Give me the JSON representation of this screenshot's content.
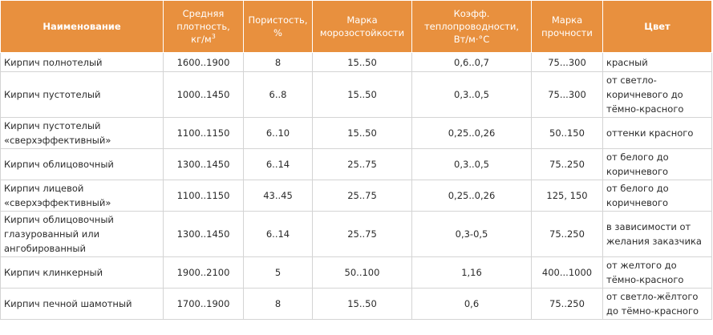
{
  "header": {
    "name": "Наименование",
    "density_line1": "Средняя",
    "density_line2": "плотность,",
    "density_unit": "кг/м",
    "density_sup": "3",
    "porosity": "Пористость,",
    "porosity_unit": "%",
    "frost_line1": "Марка",
    "frost_line2": "морозостойкости",
    "thermal_line1": "Коэфф.",
    "thermal_line2": "теплопроводности,",
    "thermal_line3": "Вт/м·°С",
    "strength_line1": "Марка",
    "strength_line2": "прочности",
    "color": "Цвет"
  },
  "rows": [
    {
      "name": [
        "Кирпич полнотелый"
      ],
      "density": "1600..1900",
      "porosity": "8",
      "frost": "15..50",
      "thermal": "0,6..0,7",
      "strength": "75...300",
      "color": [
        "красный"
      ]
    },
    {
      "name": [
        "Кирпич пустотелый"
      ],
      "density": "1000..1450",
      "porosity": "6..8",
      "frost": "15..50",
      "thermal": "0,3..0,5",
      "strength": "75...300",
      "color": [
        "от светло-",
        "коричневого до",
        "тёмно-красного"
      ]
    },
    {
      "name": [
        "Кирпич пустотелый",
        "«сверхэффективный»"
      ],
      "density": "1100..1150",
      "porosity": "6..10",
      "frost": "15..50",
      "thermal": "0,25..0,26",
      "strength": "50..150",
      "color": [
        "оттенки красного"
      ]
    },
    {
      "name": [
        "Кирпич облицовочный"
      ],
      "density": "1300..1450",
      "porosity": "6..14",
      "frost": "25..75",
      "thermal": "0,3..0,5",
      "strength": "75..250",
      "color": [
        "от белого до",
        "коричневого"
      ]
    },
    {
      "name": [
        "Кирпич лицевой",
        "«сверхэффективный»"
      ],
      "density": "1100..1150",
      "porosity": "43..45",
      "frost": "25..75",
      "thermal": "0,25..0,26",
      "strength": "125, 150",
      "color": [
        "от белого до",
        "коричневого"
      ]
    },
    {
      "name": [
        "Кирпич облицовочный",
        "глазурованный или",
        "ангобированный"
      ],
      "density": "1300..1450",
      "porosity": "6..14",
      "frost": "25..75",
      "thermal": "0,3-0,5",
      "strength": "75..250",
      "color": [
        "в зависимости от",
        "желания заказчика"
      ]
    },
    {
      "name": [
        "Кирпич клинкерный"
      ],
      "density": "1900..2100",
      "porosity": "5",
      "frost": "50..100",
      "thermal": "1,16",
      "strength": "400...1000",
      "color": [
        "от желтого до",
        "тёмно-красного"
      ]
    },
    {
      "name": [
        "Кирпич печной шамотный"
      ],
      "density": "1700..1900",
      "porosity": "8",
      "frost": "15..50",
      "thermal": "0,6",
      "strength": "75..250",
      "color": [
        "от светло-жёлтого",
        "до тёмно-красного"
      ]
    }
  ]
}
